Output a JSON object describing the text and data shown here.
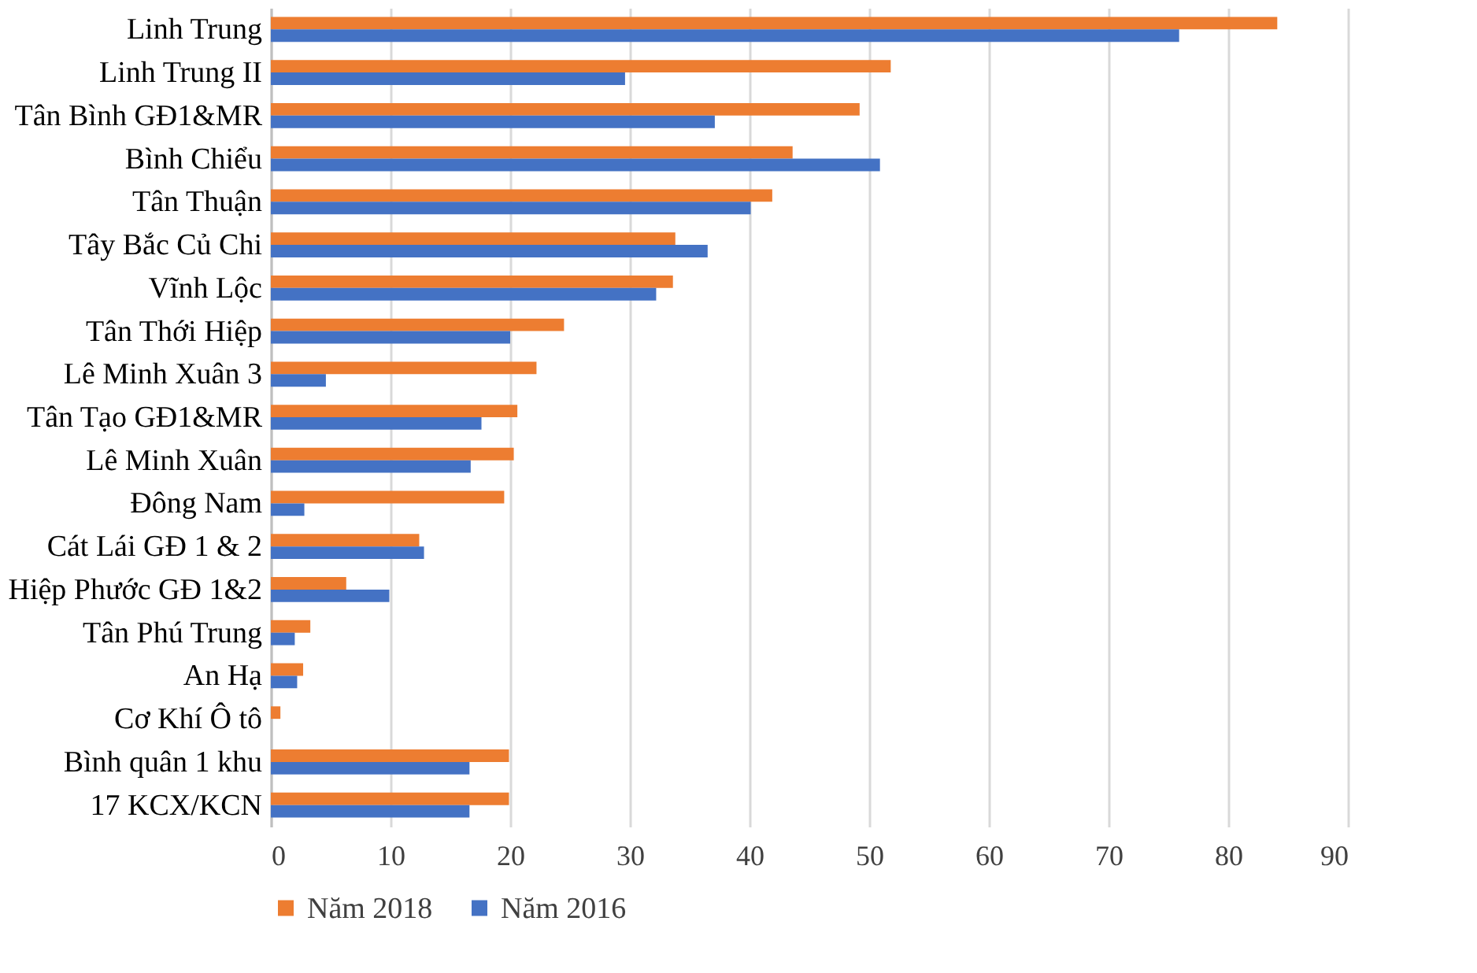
{
  "chart_data": {
    "type": "bar",
    "orientation": "horizontal",
    "categories": [
      "Linh Trung",
      "Linh Trung II",
      "Tân Bình GĐ1&MR",
      "Bình Chiểu",
      "Tân Thuận",
      "Tây Bắc Củ Chi",
      "Vĩnh Lộc",
      "Tân Thới Hiệp",
      "Lê Minh Xuân 3",
      "Tân Tạo GĐ1&MR",
      "Lê Minh Xuân",
      "Đông Nam",
      "Cát Lái GĐ 1 & 2",
      "Hiệp Phước GĐ 1&2",
      "Tân Phú Trung",
      "An Hạ",
      "Cơ Khí Ô tô",
      "Bình quân 1 khu",
      "17 KCX/KCN"
    ],
    "series": [
      {
        "name": "Năm 2018",
        "color": "#ed7d31",
        "values": [
          84.1,
          51.8,
          49.2,
          43.6,
          41.9,
          33.8,
          33.6,
          24.5,
          22.2,
          20.6,
          20.3,
          19.5,
          12.4,
          6.3,
          3.3,
          2.7,
          0.8,
          19.9,
          19.9
        ]
      },
      {
        "name": "Năm 2016",
        "color": "#4472c4",
        "values": [
          75.9,
          29.6,
          37.1,
          50.9,
          40.1,
          36.5,
          32.2,
          20.0,
          4.6,
          17.6,
          16.7,
          2.8,
          12.8,
          9.9,
          2.0,
          2.2,
          0,
          16.6,
          16.6
        ]
      }
    ],
    "xlim": [
      0,
      90
    ],
    "xticks": [
      0,
      10,
      20,
      30,
      40,
      50,
      60,
      70,
      80,
      90
    ],
    "grid": "x",
    "legend": "bottom"
  }
}
